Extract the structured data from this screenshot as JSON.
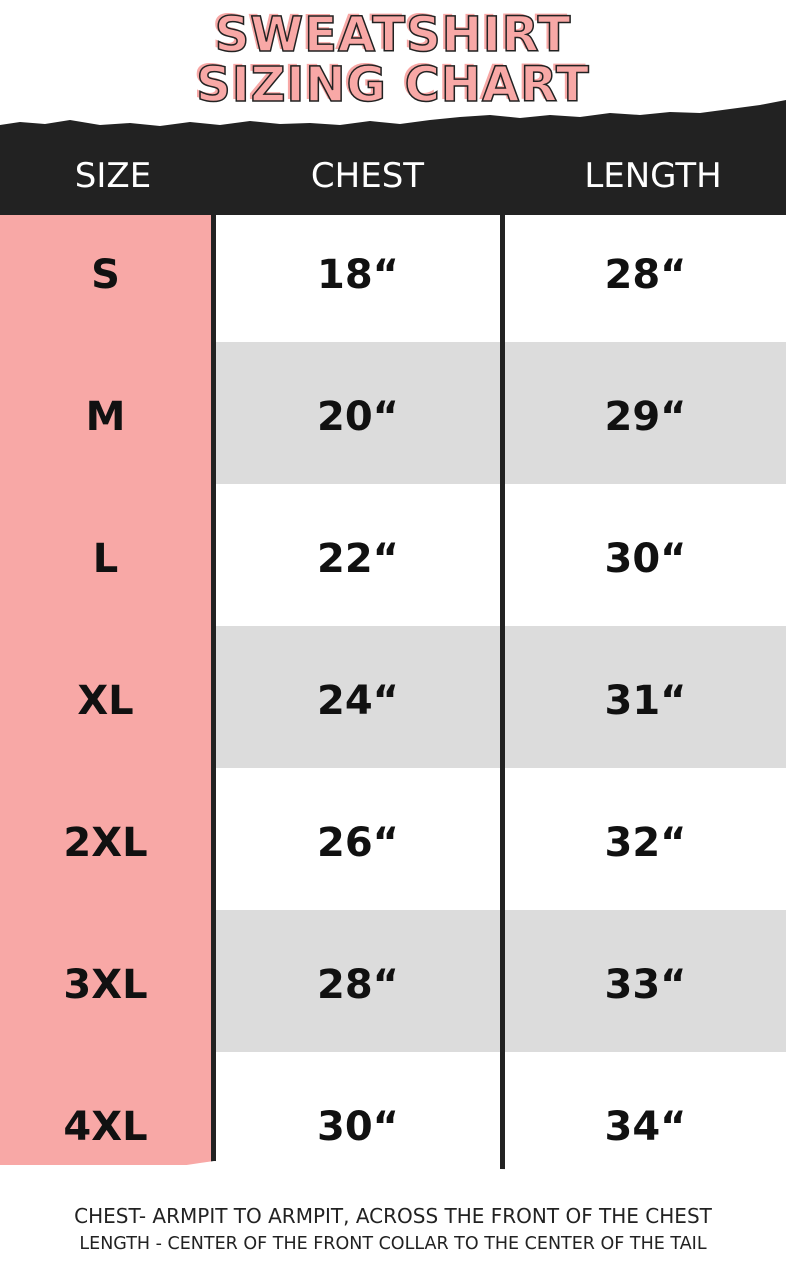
{
  "title": {
    "line1": "SWEATSHIRT",
    "line2": "SIZING CHART"
  },
  "colors": {
    "accent": "#f8a8a6",
    "header_bg": "#222222",
    "stripe": "#dcdcdc"
  },
  "table": {
    "headers": [
      "SIZE",
      "CHEST",
      "LENGTH"
    ],
    "rows": [
      {
        "size": "S",
        "chest": "18“",
        "length": "28“"
      },
      {
        "size": "M",
        "chest": "20“",
        "length": "29“"
      },
      {
        "size": "L",
        "chest": "22“",
        "length": "30“"
      },
      {
        "size": "XL",
        "chest": "24“",
        "length": "31“"
      },
      {
        "size": "2XL",
        "chest": "26“",
        "length": "32“"
      },
      {
        "size": "3XL",
        "chest": "28“",
        "length": "33“"
      },
      {
        "size": "4XL",
        "chest": "30“",
        "length": "34“"
      }
    ]
  },
  "notes": {
    "chest": "CHEST- ARMPIT TO ARMPIT, ACROSS THE FRONT OF THE CHEST",
    "length": "LENGTH - CENTER OF THE FRONT COLLAR TO THE CENTER OF THE TAIL"
  }
}
